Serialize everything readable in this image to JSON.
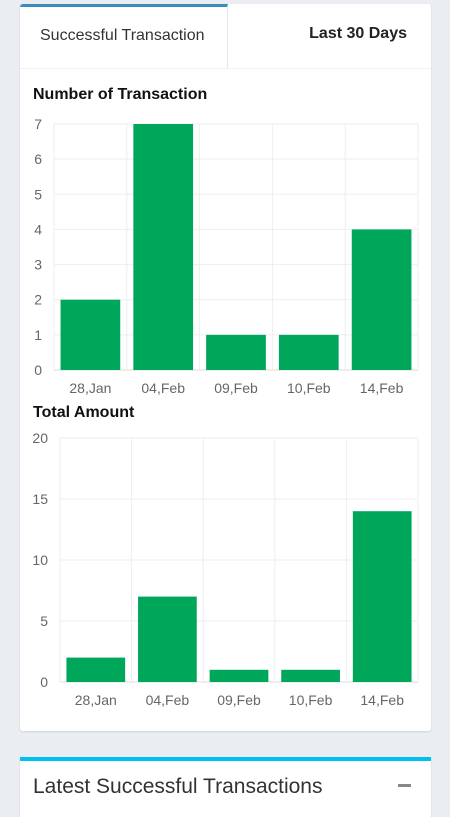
{
  "tabs": {
    "active_label": "Successful Transaction",
    "range_label": "Last 30 Days"
  },
  "charts_titles": {
    "count": "Number of Transaction",
    "amount": "Total Amount"
  },
  "chart_data": [
    {
      "type": "bar",
      "title": "Number of Transaction",
      "categories": [
        "28,Jan",
        "04,Feb",
        "09,Feb",
        "10,Feb",
        "14,Feb"
      ],
      "values": [
        2,
        7,
        1,
        1,
        4
      ],
      "yticks": [
        0,
        1,
        2,
        3,
        4,
        5,
        6,
        7
      ],
      "ylim": [
        0,
        7
      ],
      "grid": true,
      "color": "#00a65a"
    },
    {
      "type": "bar",
      "title": "Total Amount",
      "categories": [
        "28,Jan",
        "04,Feb",
        "09,Feb",
        "10,Feb",
        "14,Feb"
      ],
      "values": [
        2,
        7,
        1,
        1,
        14
      ],
      "yticks": [
        0,
        5,
        10,
        15,
        20
      ],
      "ylim": [
        0,
        20
      ],
      "grid": true,
      "color": "#00a65a"
    }
  ],
  "latest_box": {
    "title": "Latest Successful Transactions",
    "collapse_icon": "minus-icon"
  }
}
